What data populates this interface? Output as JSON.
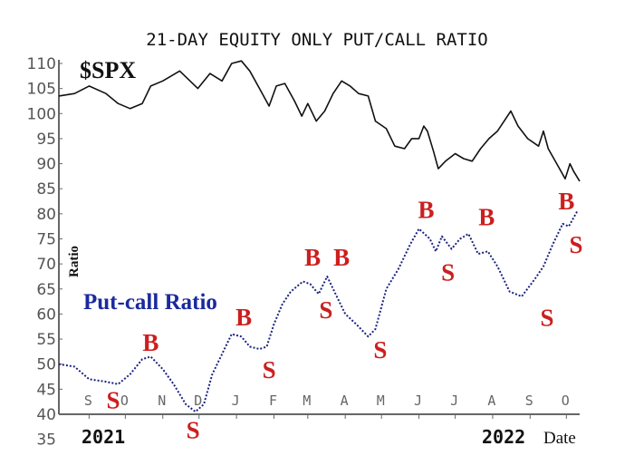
{
  "chart_data": {
    "type": "line",
    "title": "21-DAY EQUITY ONLY PUT/CALL RATIO",
    "xlabel": "Date",
    "ylabel": "Ratio",
    "ylim": [
      35,
      110
    ],
    "yticks": [
      110,
      105,
      100,
      95,
      90,
      85,
      80,
      75,
      70,
      65,
      60,
      55,
      50,
      45,
      40,
      35
    ],
    "xlim": [
      "2021-08-07",
      "2022-10-12"
    ],
    "month_ticks": [
      {
        "label": "S",
        "date": "2021-09-01"
      },
      {
        "label": "O",
        "date": "2021-10-01"
      },
      {
        "label": "N",
        "date": "2021-11-01"
      },
      {
        "label": "D",
        "date": "2021-12-01"
      },
      {
        "label": "J",
        "date": "2022-01-01"
      },
      {
        "label": "F",
        "date": "2022-02-01"
      },
      {
        "label": "M",
        "date": "2022-03-01"
      },
      {
        "label": "A",
        "date": "2022-04-01"
      },
      {
        "label": "M",
        "date": "2022-05-01"
      },
      {
        "label": "J",
        "date": "2022-06-01"
      },
      {
        "label": "J",
        "date": "2022-07-01"
      },
      {
        "label": "A",
        "date": "2022-08-01"
      },
      {
        "label": "S",
        "date": "2022-09-01"
      },
      {
        "label": "O",
        "date": "2022-10-01"
      }
    ],
    "year_labels": [
      "2021",
      "2022"
    ],
    "grid": false,
    "series": [
      {
        "name": "$SPX",
        "color": "#111111",
        "style": "solid",
        "points": [
          [
            "2021-08-07",
            103.5
          ],
          [
            "2021-08-20",
            104
          ],
          [
            "2021-09-01",
            105.5
          ],
          [
            "2021-09-15",
            104
          ],
          [
            "2021-09-25",
            102
          ],
          [
            "2021-10-05",
            101
          ],
          [
            "2021-10-15",
            102
          ],
          [
            "2021-10-22",
            105.5
          ],
          [
            "2021-11-01",
            106.5
          ],
          [
            "2021-11-15",
            108.5
          ],
          [
            "2021-11-30",
            105
          ],
          [
            "2021-12-10",
            108
          ],
          [
            "2021-12-20",
            106.5
          ],
          [
            "2021-12-28",
            110
          ],
          [
            "2022-01-05",
            110.5
          ],
          [
            "2022-01-12",
            108.5
          ],
          [
            "2022-01-20",
            105
          ],
          [
            "2022-01-28",
            101.5
          ],
          [
            "2022-02-03",
            105.5
          ],
          [
            "2022-02-10",
            106
          ],
          [
            "2022-02-18",
            102.5
          ],
          [
            "2022-02-24",
            99.5
          ],
          [
            "2022-03-01",
            102
          ],
          [
            "2022-03-08",
            98.5
          ],
          [
            "2022-03-15",
            100.5
          ],
          [
            "2022-03-22",
            104
          ],
          [
            "2022-03-29",
            106.5
          ],
          [
            "2022-04-05",
            105.5
          ],
          [
            "2022-04-12",
            104
          ],
          [
            "2022-04-20",
            103.5
          ],
          [
            "2022-04-26",
            98.5
          ],
          [
            "2022-05-05",
            97
          ],
          [
            "2022-05-12",
            93.5
          ],
          [
            "2022-05-20",
            93
          ],
          [
            "2022-05-26",
            95
          ],
          [
            "2022-06-01",
            95
          ],
          [
            "2022-06-05",
            97.5
          ],
          [
            "2022-06-08",
            96.5
          ],
          [
            "2022-06-13",
            92.5
          ],
          [
            "2022-06-17",
            89
          ],
          [
            "2022-06-23",
            90.5
          ],
          [
            "2022-07-01",
            92
          ],
          [
            "2022-07-08",
            91
          ],
          [
            "2022-07-15",
            90.5
          ],
          [
            "2022-07-22",
            93
          ],
          [
            "2022-07-29",
            95
          ],
          [
            "2022-08-05",
            96.5
          ],
          [
            "2022-08-16",
            100.5
          ],
          [
            "2022-08-22",
            97.5
          ],
          [
            "2022-08-30",
            95
          ],
          [
            "2022-09-08",
            93.5
          ],
          [
            "2022-09-12",
            96.5
          ],
          [
            "2022-09-16",
            93
          ],
          [
            "2022-09-23",
            90
          ],
          [
            "2022-09-30",
            87
          ],
          [
            "2022-10-04",
            90
          ],
          [
            "2022-10-07",
            88.5
          ],
          [
            "2022-10-12",
            86.5
          ]
        ]
      },
      {
        "name": "Put-call Ratio",
        "color": "#1a237e",
        "style": "dotted",
        "points": [
          [
            "2021-08-07",
            50
          ],
          [
            "2021-08-20",
            49.5
          ],
          [
            "2021-09-01",
            47
          ],
          [
            "2021-09-15",
            46.5
          ],
          [
            "2021-09-25",
            46
          ],
          [
            "2021-10-05",
            48
          ],
          [
            "2021-10-15",
            51
          ],
          [
            "2021-10-22",
            51.5
          ],
          [
            "2021-11-01",
            49
          ],
          [
            "2021-11-10",
            46
          ],
          [
            "2021-11-20",
            42
          ],
          [
            "2021-11-28",
            40.5
          ],
          [
            "2021-12-05",
            42
          ],
          [
            "2021-12-12",
            48
          ],
          [
            "2021-12-20",
            52
          ],
          [
            "2021-12-28",
            56
          ],
          [
            "2022-01-05",
            55.5
          ],
          [
            "2022-01-12",
            53.5
          ],
          [
            "2022-01-20",
            53
          ],
          [
            "2022-01-26",
            53.5
          ],
          [
            "2022-02-01",
            58
          ],
          [
            "2022-02-08",
            62
          ],
          [
            "2022-02-15",
            64.5
          ],
          [
            "2022-02-25",
            66.5
          ],
          [
            "2022-03-03",
            66
          ],
          [
            "2022-03-10",
            64
          ],
          [
            "2022-03-17",
            67.5
          ],
          [
            "2022-03-24",
            64
          ],
          [
            "2022-04-01",
            60
          ],
          [
            "2022-04-10",
            58
          ],
          [
            "2022-04-20",
            55.5
          ],
          [
            "2022-04-26",
            57
          ],
          [
            "2022-05-05",
            65
          ],
          [
            "2022-05-15",
            69
          ],
          [
            "2022-05-25",
            74
          ],
          [
            "2022-06-01",
            77
          ],
          [
            "2022-06-10",
            75
          ],
          [
            "2022-06-15",
            72.5
          ],
          [
            "2022-06-20",
            75.5
          ],
          [
            "2022-06-28",
            73
          ],
          [
            "2022-07-05",
            75
          ],
          [
            "2022-07-12",
            76
          ],
          [
            "2022-07-20",
            72
          ],
          [
            "2022-07-28",
            72.5
          ],
          [
            "2022-08-05",
            69.5
          ],
          [
            "2022-08-15",
            64.5
          ],
          [
            "2022-08-25",
            63.5
          ],
          [
            "2022-09-05",
            67
          ],
          [
            "2022-09-12",
            69.5
          ],
          [
            "2022-09-20",
            74
          ],
          [
            "2022-09-28",
            78
          ],
          [
            "2022-10-03",
            77.5
          ],
          [
            "2022-10-10",
            80.5
          ]
        ]
      }
    ],
    "series_labels": {
      "spx": "$SPX",
      "ratio": "Put-call Ratio"
    },
    "annotation_color": "#cc1f1f",
    "annotations": [
      {
        "text": "S",
        "date": "2021-09-21",
        "value": 43
      },
      {
        "text": "B",
        "date": "2021-10-22",
        "value": 54.5
      },
      {
        "text": "S",
        "date": "2021-11-26",
        "value": 37
      },
      {
        "text": "B",
        "date": "2022-01-07",
        "value": 59.5
      },
      {
        "text": "S",
        "date": "2022-01-28",
        "value": 49
      },
      {
        "text": "B",
        "date": "2022-03-05",
        "value": 71.5
      },
      {
        "text": "S",
        "date": "2022-03-16",
        "value": 61
      },
      {
        "text": "B",
        "date": "2022-03-29",
        "value": 71.5
      },
      {
        "text": "S",
        "date": "2022-04-30",
        "value": 53
      },
      {
        "text": "B",
        "date": "2022-06-07",
        "value": 81
      },
      {
        "text": "S",
        "date": "2022-06-25",
        "value": 68.5
      },
      {
        "text": "B",
        "date": "2022-07-27",
        "value": 79.5
      },
      {
        "text": "S",
        "date": "2022-09-15",
        "value": 59.4
      },
      {
        "text": "B",
        "date": "2022-10-01",
        "value": 82.7
      },
      {
        "text": "S",
        "date": "2022-10-09",
        "value": 74
      }
    ]
  }
}
